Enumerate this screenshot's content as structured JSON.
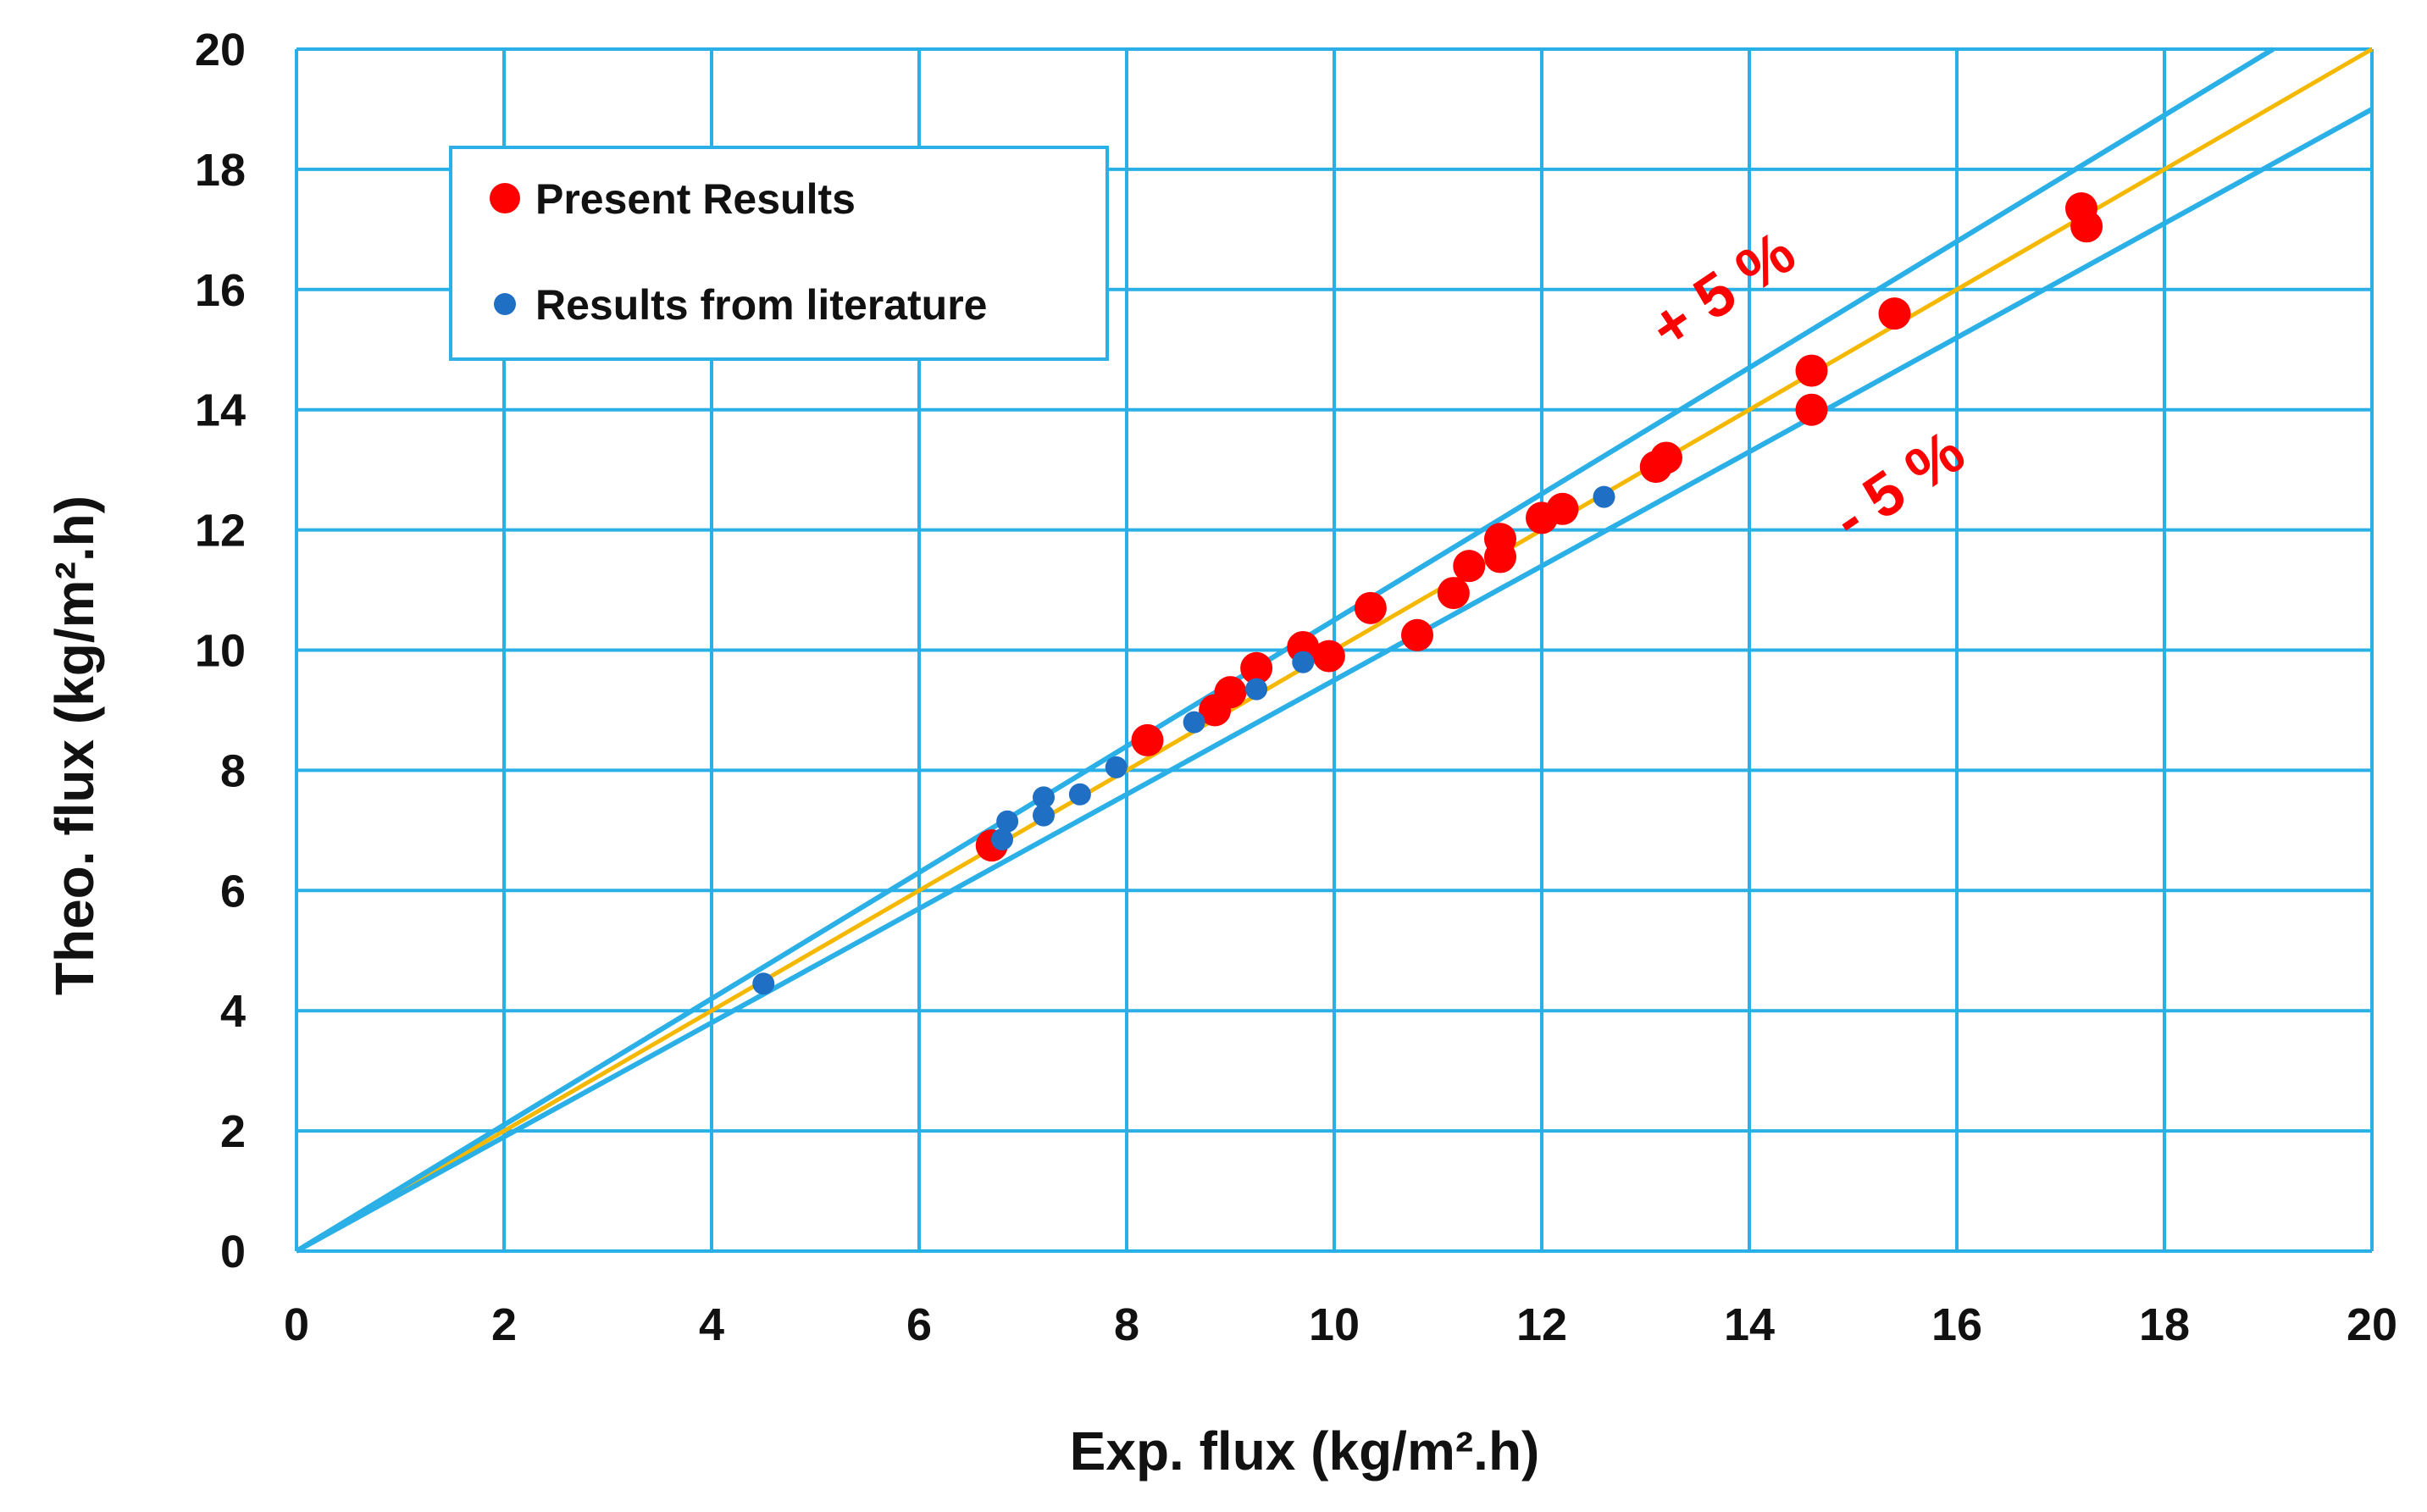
{
  "chart_data": {
    "type": "scatter",
    "title": "",
    "xlabel": "Exp. flux (kg/m².h)",
    "ylabel": "Theo. flux (kg/m².h)",
    "xlim": [
      0,
      20
    ],
    "ylim": [
      0,
      20
    ],
    "xticks": [
      0,
      2,
      4,
      6,
      8,
      10,
      12,
      14,
      16,
      18,
      20
    ],
    "yticks": [
      0,
      2,
      4,
      6,
      8,
      10,
      12,
      14,
      16,
      18,
      20
    ],
    "xtick_labels": [
      "0",
      "2",
      "4",
      "6",
      "8",
      "10",
      "12",
      "14",
      "16",
      "18",
      "20"
    ],
    "ytick_labels": [
      "0",
      "2",
      "4",
      "6",
      "8",
      "10",
      "12",
      "14",
      "16",
      "18",
      "20"
    ],
    "grid": true,
    "legend_position": "top-left",
    "series": [
      {
        "name": "Present Results",
        "color": "#ff0000",
        "marker": "circle-large",
        "points": [
          [
            6.7,
            6.75
          ],
          [
            8.2,
            8.5
          ],
          [
            8.85,
            9.0
          ],
          [
            9.0,
            9.3
          ],
          [
            9.25,
            9.7
          ],
          [
            9.7,
            10.05
          ],
          [
            9.95,
            9.9
          ],
          [
            10.35,
            10.7
          ],
          [
            10.8,
            10.25
          ],
          [
            11.15,
            10.95
          ],
          [
            11.3,
            11.4
          ],
          [
            11.6,
            11.85
          ],
          [
            11.6,
            11.55
          ],
          [
            12.0,
            12.2
          ],
          [
            12.2,
            12.35
          ],
          [
            13.1,
            13.05
          ],
          [
            13.2,
            13.2
          ],
          [
            14.6,
            14.65
          ],
          [
            14.6,
            14.0
          ],
          [
            15.4,
            15.6
          ],
          [
            17.2,
            17.35
          ],
          [
            17.25,
            17.05
          ]
        ]
      },
      {
        "name": "Results from literature",
        "color": "#1f6fc5",
        "marker": "circle-small",
        "points": [
          [
            4.5,
            4.45
          ],
          [
            6.8,
            6.85
          ],
          [
            6.85,
            7.15
          ],
          [
            7.2,
            7.25
          ],
          [
            7.2,
            7.55
          ],
          [
            7.55,
            7.6
          ],
          [
            7.9,
            8.05
          ],
          [
            8.65,
            8.8
          ],
          [
            9.25,
            9.35
          ],
          [
            9.7,
            9.8
          ],
          [
            12.6,
            12.55
          ]
        ]
      }
    ],
    "reference_lines": [
      {
        "name": "identity",
        "slope": 1.0,
        "color": "#f5b800"
      },
      {
        "name": "plus-5-percent",
        "slope": 1.05,
        "color": "#2ab0e6"
      },
      {
        "name": "minus-5-percent",
        "slope": 0.95,
        "color": "#2ab0e6"
      }
    ],
    "annotations": {
      "plus": "+ 5 %",
      "minus": "- 5 %"
    }
  }
}
